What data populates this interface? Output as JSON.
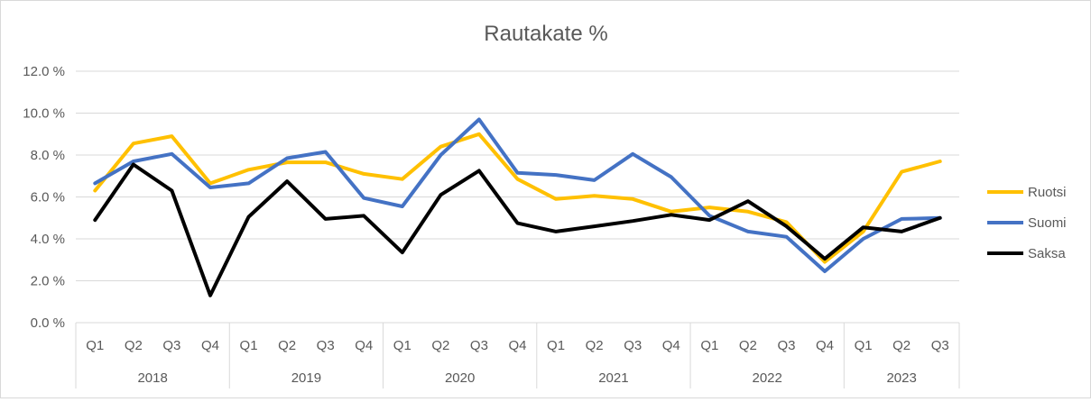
{
  "chart_data": {
    "type": "line",
    "title": "Rautakate %",
    "quarters": [
      "Q1",
      "Q2",
      "Q3",
      "Q4",
      "Q1",
      "Q2",
      "Q3",
      "Q4",
      "Q1",
      "Q2",
      "Q3",
      "Q4",
      "Q1",
      "Q2",
      "Q3",
      "Q4",
      "Q1",
      "Q2",
      "Q3",
      "Q4",
      "Q1",
      "Q2",
      "Q3"
    ],
    "years": [
      {
        "label": "2018",
        "count": 4
      },
      {
        "label": "2019",
        "count": 4
      },
      {
        "label": "2020",
        "count": 4
      },
      {
        "label": "2021",
        "count": 4
      },
      {
        "label": "2022",
        "count": 4
      },
      {
        "label": "2023",
        "count": 3
      }
    ],
    "yticks": [
      "0.0 %",
      "2.0 %",
      "4.0 %",
      "6.0 %",
      "8.0 %",
      "10.0 %",
      "12.0 %"
    ],
    "ylim": [
      0,
      12
    ],
    "ystep": 2,
    "grid": true,
    "legend_position": "right",
    "series": [
      {
        "name": "Ruotsi",
        "color": "#FFC000",
        "values": [
          6.3,
          8.55,
          8.9,
          6.65,
          7.3,
          7.65,
          7.65,
          7.1,
          6.85,
          8.4,
          9.0,
          6.85,
          5.9,
          6.05,
          5.9,
          5.3,
          5.5,
          5.3,
          4.8,
          2.9,
          4.35,
          7.2,
          7.7
        ]
      },
      {
        "name": "Suomi",
        "color": "#4472C4",
        "values": [
          6.65,
          7.7,
          8.05,
          6.45,
          6.65,
          7.85,
          8.15,
          5.95,
          5.55,
          8.0,
          9.7,
          7.15,
          7.05,
          6.8,
          8.05,
          6.95,
          5.1,
          4.35,
          4.1,
          2.45,
          4.0,
          4.95,
          5.0
        ]
      },
      {
        "name": "Saksa",
        "color": "#000000",
        "values": [
          4.9,
          7.55,
          6.3,
          1.3,
          5.05,
          6.75,
          4.95,
          5.1,
          3.35,
          6.1,
          7.25,
          4.75,
          4.35,
          4.6,
          4.85,
          5.15,
          4.9,
          5.8,
          4.6,
          3.05,
          4.55,
          4.35,
          5.0
        ]
      }
    ]
  }
}
